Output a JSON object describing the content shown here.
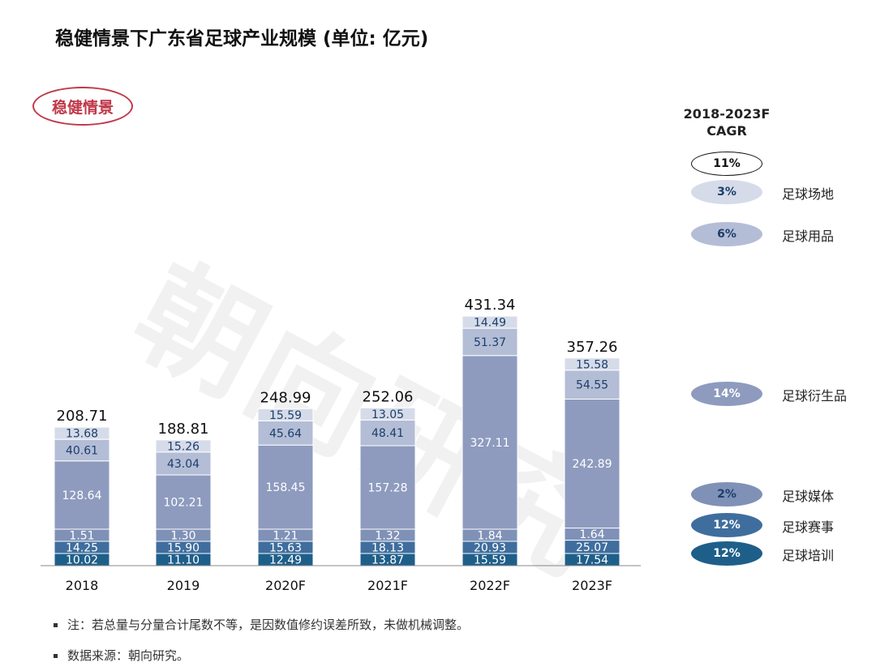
{
  "title": "稳健情景下广东省足球产业规模 (单位: 亿元)",
  "scenario_label": "稳健情景",
  "watermark": "朝向研究",
  "cagr_header": [
    "2018-2023F",
    "CAGR"
  ],
  "total_cagr": "11%",
  "notes": [
    "注：若总量与分量合计尾数不等，是因数值修约误差所致，未做机械调整。",
    "数据来源：朝向研究。"
  ],
  "colors": {
    "足球培训": "#1e5f8a",
    "足球赛事": "#3f6e9e",
    "足球媒体": "#7f91b7",
    "足球衍生品": "#8e9bbf",
    "足球用品": "#b4bdd6",
    "足球场地": "#d6dbe9"
  },
  "chart_data": {
    "type": "bar",
    "stacked": true,
    "categories": [
      "2018",
      "2019",
      "2020F",
      "2021F",
      "2022F",
      "2023F"
    ],
    "totals": [
      "208.71",
      "188.81",
      "248.99",
      "252.06",
      "431.34",
      "357.26"
    ],
    "series": [
      {
        "name": "足球培训",
        "values": [
          10.02,
          11.1,
          12.49,
          13.87,
          15.59,
          17.54
        ],
        "labels": [
          "10.02",
          "11.10",
          "12.49",
          "13.87",
          "15.59",
          "17.54"
        ],
        "cagr": "12%"
      },
      {
        "name": "足球赛事",
        "values": [
          14.25,
          15.9,
          15.63,
          18.13,
          20.93,
          25.07
        ],
        "labels": [
          "14.25",
          "15.90",
          "15.63",
          "18.13",
          "20.93",
          "25.07"
        ],
        "cagr": "12%"
      },
      {
        "name": "足球媒体",
        "values": [
          1.51,
          1.3,
          1.21,
          1.32,
          1.84,
          1.64
        ],
        "labels": [
          "1.51",
          "1.30",
          "1.21",
          "1.32",
          "1.84",
          "1.64"
        ],
        "cagr": "2%"
      },
      {
        "name": "足球衍生品",
        "values": [
          128.64,
          102.21,
          158.45,
          157.28,
          327.11,
          242.89
        ],
        "labels": [
          "128.64",
          "102.21",
          "158.45",
          "157.28",
          "327.11",
          "242.89"
        ],
        "cagr": "14%"
      },
      {
        "name": "足球用品",
        "values": [
          40.61,
          43.04,
          45.64,
          48.41,
          51.37,
          54.55
        ],
        "labels": [
          "40.61",
          "43.04",
          "45.64",
          "48.41",
          "51.37",
          "54.55"
        ],
        "cagr": "6%"
      },
      {
        "name": "足球场地",
        "values": [
          13.68,
          15.26,
          15.59,
          13.05,
          14.49,
          15.58
        ],
        "labels": [
          "13.68",
          "15.26",
          "15.59",
          "13.05",
          "14.49",
          "15.58"
        ],
        "cagr": "3%"
      }
    ]
  }
}
